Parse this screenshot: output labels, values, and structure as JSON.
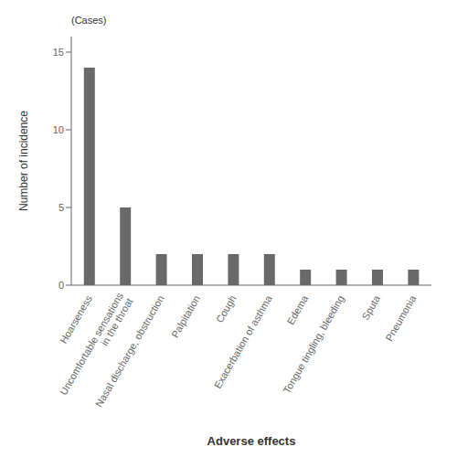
{
  "chart_data": {
    "type": "bar",
    "categories": [
      "Hoarseness",
      "Uncomfortable sensations\nin the throat",
      "Nasal discharge, obstruction",
      "Palpitation",
      "Cough",
      "Exacerbation of asthma",
      "Edema",
      "Tongue tingling, bleeding",
      "Sputa",
      "Pneumonia"
    ],
    "values": [
      14,
      5,
      2,
      2,
      2,
      2,
      1,
      1,
      1,
      1
    ],
    "color": "#696969",
    "ylabel": "Number of incidence",
    "xlabel": "Adverse effects",
    "annotations": [
      "(Cases)"
    ],
    "ylim": [
      0,
      16
    ],
    "yticks": [
      0,
      5,
      10,
      15
    ],
    "grid": false
  }
}
